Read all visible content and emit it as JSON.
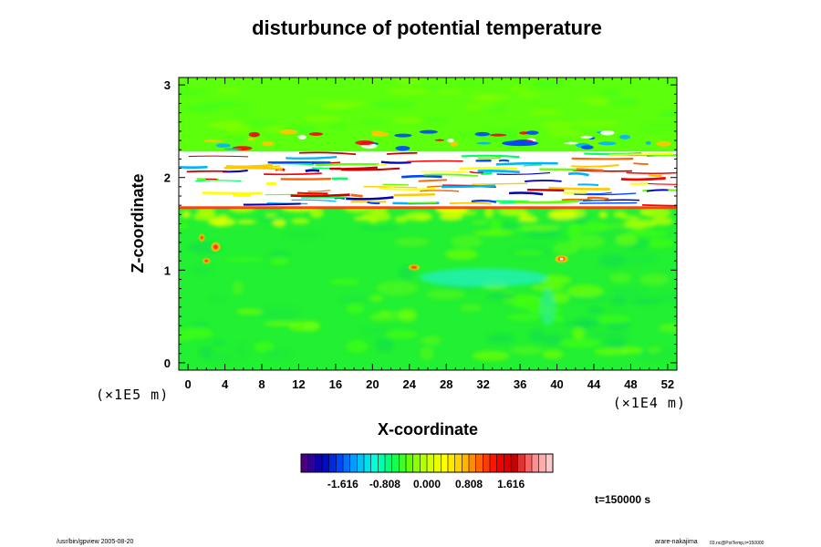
{
  "chart_data": {
    "type": "heatmap",
    "title": "disturbunce of potential temperature",
    "xlabel": "X-coordinate",
    "ylabel": "Z-coordinate",
    "x_ticks": [
      "0",
      "4",
      "8",
      "12",
      "16",
      "20",
      "24",
      "28",
      "32",
      "36",
      "40",
      "44",
      "48",
      "52"
    ],
    "y_ticks": [
      "0",
      "1",
      "2",
      "3"
    ],
    "xlim": [
      -1,
      53
    ],
    "ylim": [
      -0.08,
      3.08
    ],
    "x_scale_label": "(×1E4 m)",
    "y_scale_label": "(×1E5 m)",
    "colorbar": {
      "tick_labels": [
        "-1.616",
        "-0.808",
        "0.000",
        "0.808",
        "1.616"
      ],
      "tick_values": [
        -1.616,
        -0.808,
        0.0,
        0.808,
        1.616
      ],
      "range": [
        -2.42,
        2.42
      ],
      "colors": [
        "#4b0082",
        "#0000b4",
        "#0046ff",
        "#00b4ff",
        "#00ffdc",
        "#00ff64",
        "#64ff00",
        "#c8ff00",
        "#ffff00",
        "#ffc800",
        "#ff6400",
        "#ff0000",
        "#c80000",
        "#ff8080",
        "#ffc8c8"
      ]
    },
    "field": {
      "background": "#28ff28",
      "upper_layer": "#5cff0c",
      "lower_layer": "#22f032",
      "saturated_band": [
        1.68,
        2.28
      ],
      "cool_patch": "#22f0b4",
      "warm_spots": "#ff3000",
      "saturated_color": "#ffffff"
    }
  },
  "annotations": {
    "time_label": "t=150000 s",
    "footer_left": "/usr/bin/gpview 2005-08-20",
    "footer_right_main": "arare-nakajima",
    "footer_right_sub": "03.nc@PotTemp,t=150000"
  }
}
